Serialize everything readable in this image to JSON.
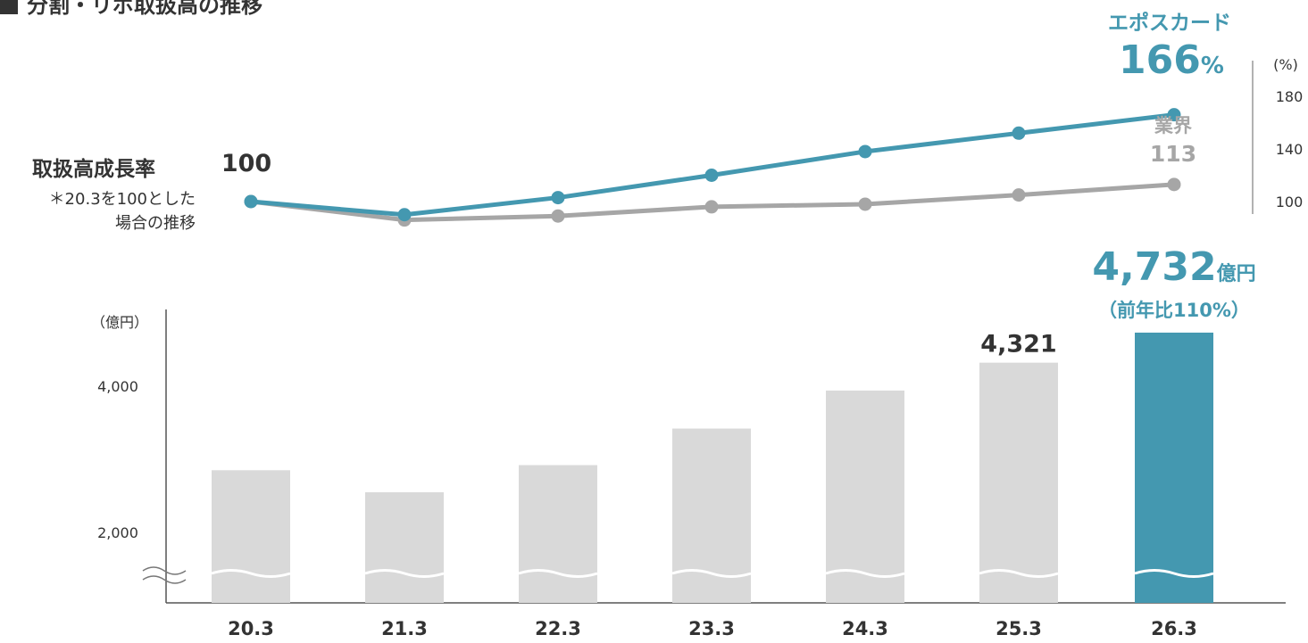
{
  "title": "分割・リボ取扱高の推移",
  "colors": {
    "epos": "#4498b0",
    "industry": "#a6a6a6",
    "bar": "#d9d9d9",
    "text": "#333333"
  },
  "chart_data": [
    {
      "type": "line",
      "title": "取扱高成長率",
      "note_line1": "＊20.3を100とした",
      "note_line2": "場合の推移",
      "unit": "(%)",
      "x": [
        "20.3",
        "21.3",
        "22.3",
        "23.3",
        "24.3",
        "25.3",
        "26.3"
      ],
      "yticks": [
        "180",
        "140",
        "100"
      ],
      "series": [
        {
          "name": "エポスカード",
          "values": [
            100,
            90,
            103,
            120,
            138,
            152,
            166
          ]
        },
        {
          "name": "業界",
          "values": [
            100,
            86,
            89,
            96,
            98,
            105,
            113
          ]
        }
      ],
      "annotations": {
        "start": "100",
        "epos_name": "エポスカード",
        "epos_end": "166",
        "epos_pct": "%",
        "industry_name": "業界",
        "industry_end": "113"
      }
    },
    {
      "type": "bar",
      "unit": "（億円）",
      "categories": [
        "20.3",
        "21.3",
        "22.3",
        "23.3",
        "24.3",
        "25.3",
        "26.3"
      ],
      "values": [
        2850,
        2550,
        2920,
        3420,
        3940,
        4321,
        4732
      ],
      "yticks": [
        "4,000",
        "2,000"
      ],
      "axis_break": true,
      "labels": {
        "prev": "4,321",
        "last_value": "4,732",
        "last_unit": "億円",
        "yoy": "（前年比110%）"
      }
    }
  ]
}
